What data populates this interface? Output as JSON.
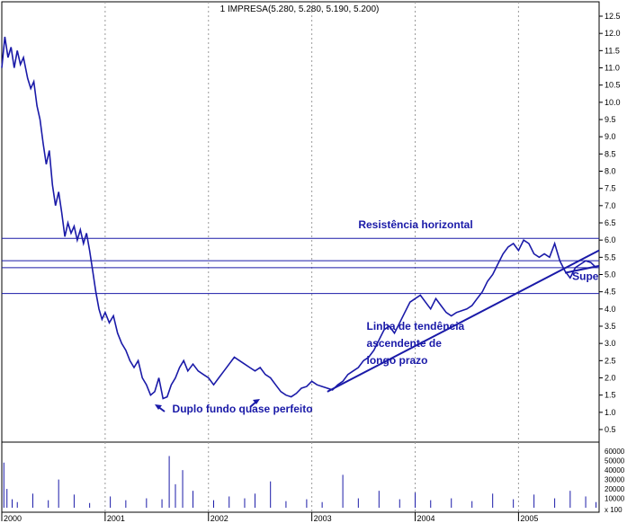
{
  "chart_data": {
    "type": "line",
    "title": "1 IMPRESA(5.280, 5.280, 5.190, 5.200)",
    "y_ticks": [
      "12.5",
      "12.0",
      "11.5",
      "11.0",
      "10.5",
      "10.0",
      "9.5",
      "9.0",
      "8.5",
      "8.0",
      "7.5",
      "7.0",
      "6.5",
      "6.0",
      "5.5",
      "5.0",
      "4.5",
      "4.0",
      "3.5",
      "3.0",
      "2.5",
      "2.0",
      "1.5",
      "1.0",
      "0.5"
    ],
    "volume_ticks": [
      "60000",
      "50000",
      "40000",
      "30000",
      "20000",
      "10000",
      "x 100"
    ],
    "x_ticks": [
      "2000",
      "2001",
      "2002",
      "2003",
      "2004",
      "2005"
    ],
    "ylim": [
      0.5,
      12.5
    ],
    "xlim": [
      2000.0,
      2005.78
    ],
    "grid": true,
    "price_series": [
      [
        2000.0,
        11.0
      ],
      [
        2000.03,
        11.9
      ],
      [
        2000.06,
        11.3
      ],
      [
        2000.09,
        11.6
      ],
      [
        2000.12,
        11.0
      ],
      [
        2000.15,
        11.5
      ],
      [
        2000.18,
        11.1
      ],
      [
        2000.21,
        11.3
      ],
      [
        2000.25,
        10.7
      ],
      [
        2000.28,
        10.4
      ],
      [
        2000.31,
        10.6
      ],
      [
        2000.34,
        9.9
      ],
      [
        2000.37,
        9.5
      ],
      [
        2000.4,
        8.8
      ],
      [
        2000.43,
        8.2
      ],
      [
        2000.46,
        8.6
      ],
      [
        2000.49,
        7.6
      ],
      [
        2000.52,
        7.0
      ],
      [
        2000.55,
        7.4
      ],
      [
        2000.58,
        6.8
      ],
      [
        2000.61,
        6.1
      ],
      [
        2000.64,
        6.5
      ],
      [
        2000.67,
        6.2
      ],
      [
        2000.7,
        6.4
      ],
      [
        2000.73,
        6.0
      ],
      [
        2000.76,
        6.3
      ],
      [
        2000.79,
        5.9
      ],
      [
        2000.82,
        6.2
      ],
      [
        2000.85,
        5.7
      ],
      [
        2000.88,
        5.1
      ],
      [
        2000.91,
        4.5
      ],
      [
        2000.94,
        4.0
      ],
      [
        2000.97,
        3.7
      ],
      [
        2001.0,
        3.9
      ],
      [
        2001.04,
        3.6
      ],
      [
        2001.08,
        3.8
      ],
      [
        2001.12,
        3.3
      ],
      [
        2001.16,
        3.0
      ],
      [
        2001.2,
        2.8
      ],
      [
        2001.24,
        2.5
      ],
      [
        2001.28,
        2.3
      ],
      [
        2001.32,
        2.5
      ],
      [
        2001.36,
        2.0
      ],
      [
        2001.4,
        1.8
      ],
      [
        2001.44,
        1.5
      ],
      [
        2001.48,
        1.6
      ],
      [
        2001.52,
        2.0
      ],
      [
        2001.56,
        1.4
      ],
      [
        2001.6,
        1.45
      ],
      [
        2001.64,
        1.8
      ],
      [
        2001.68,
        2.0
      ],
      [
        2001.72,
        2.3
      ],
      [
        2001.76,
        2.5
      ],
      [
        2001.8,
        2.2
      ],
      [
        2001.85,
        2.4
      ],
      [
        2001.9,
        2.2
      ],
      [
        2001.95,
        2.1
      ],
      [
        2002.0,
        2.0
      ],
      [
        2002.05,
        1.8
      ],
      [
        2002.1,
        2.0
      ],
      [
        2002.15,
        2.2
      ],
      [
        2002.2,
        2.4
      ],
      [
        2002.25,
        2.6
      ],
      [
        2002.3,
        2.5
      ],
      [
        2002.35,
        2.4
      ],
      [
        2002.4,
        2.3
      ],
      [
        2002.45,
        2.2
      ],
      [
        2002.5,
        2.3
      ],
      [
        2002.55,
        2.1
      ],
      [
        2002.6,
        2.0
      ],
      [
        2002.65,
        1.8
      ],
      [
        2002.7,
        1.6
      ],
      [
        2002.75,
        1.5
      ],
      [
        2002.8,
        1.45
      ],
      [
        2002.85,
        1.55
      ],
      [
        2002.9,
        1.7
      ],
      [
        2002.95,
        1.75
      ],
      [
        2003.0,
        1.9
      ],
      [
        2003.05,
        1.8
      ],
      [
        2003.1,
        1.75
      ],
      [
        2003.15,
        1.7
      ],
      [
        2003.2,
        1.65
      ],
      [
        2003.25,
        1.8
      ],
      [
        2003.3,
        1.9
      ],
      [
        2003.35,
        2.1
      ],
      [
        2003.4,
        2.2
      ],
      [
        2003.45,
        2.3
      ],
      [
        2003.5,
        2.5
      ],
      [
        2003.55,
        2.6
      ],
      [
        2003.6,
        2.8
      ],
      [
        2003.65,
        3.1
      ],
      [
        2003.7,
        3.4
      ],
      [
        2003.75,
        3.5
      ],
      [
        2003.8,
        3.3
      ],
      [
        2003.85,
        3.6
      ],
      [
        2003.9,
        3.9
      ],
      [
        2003.95,
        4.2
      ],
      [
        2004.0,
        4.3
      ],
      [
        2004.05,
        4.4
      ],
      [
        2004.1,
        4.2
      ],
      [
        2004.15,
        4.0
      ],
      [
        2004.2,
        4.3
      ],
      [
        2004.25,
        4.1
      ],
      [
        2004.3,
        3.9
      ],
      [
        2004.35,
        3.8
      ],
      [
        2004.4,
        3.9
      ],
      [
        2004.45,
        3.95
      ],
      [
        2004.5,
        4.0
      ],
      [
        2004.55,
        4.1
      ],
      [
        2004.6,
        4.3
      ],
      [
        2004.65,
        4.5
      ],
      [
        2004.7,
        4.8
      ],
      [
        2004.75,
        5.0
      ],
      [
        2004.8,
        5.3
      ],
      [
        2004.85,
        5.6
      ],
      [
        2004.9,
        5.8
      ],
      [
        2004.95,
        5.9
      ],
      [
        2005.0,
        5.7
      ],
      [
        2005.05,
        6.0
      ],
      [
        2005.1,
        5.9
      ],
      [
        2005.15,
        5.6
      ],
      [
        2005.2,
        5.5
      ],
      [
        2005.25,
        5.6
      ],
      [
        2005.3,
        5.5
      ],
      [
        2005.35,
        5.9
      ],
      [
        2005.4,
        5.4
      ],
      [
        2005.45,
        5.1
      ],
      [
        2005.5,
        4.9
      ],
      [
        2005.55,
        5.2
      ],
      [
        2005.6,
        5.3
      ],
      [
        2005.65,
        5.4
      ],
      [
        2005.7,
        5.35
      ],
      [
        2005.75,
        5.2
      ]
    ],
    "horizontal_lines": [
      6.05,
      5.4,
      5.2,
      4.45
    ],
    "trendlines": [
      {
        "from": [
          2003.15,
          1.6
        ],
        "to": [
          2005.78,
          5.7
        ]
      },
      {
        "from": [
          2005.45,
          5.05
        ],
        "to": [
          2005.78,
          5.25
        ]
      }
    ],
    "annotations": [
      {
        "text": "Resistência horizontal",
        "x": 2003.45,
        "y": 6.35
      },
      {
        "text": "Linha de tendência",
        "x": 2003.53,
        "y": 3.4
      },
      {
        "text": "ascendente de",
        "x": 2003.53,
        "y": 2.9
      },
      {
        "text": "longo prazo",
        "x": 2003.53,
        "y": 2.4
      },
      {
        "text": "Duplo fundo quase perfeito",
        "x": 2001.65,
        "y": 1.0
      },
      {
        "text": "Supe",
        "x": 2005.52,
        "y": 4.85
      }
    ],
    "volume": [
      [
        2000.02,
        48000
      ],
      [
        2000.05,
        20000
      ],
      [
        2000.1,
        9000
      ],
      [
        2000.15,
        6000
      ],
      [
        2000.3,
        15000
      ],
      [
        2000.45,
        8000
      ],
      [
        2000.55,
        30000
      ],
      [
        2000.7,
        14000
      ],
      [
        2000.85,
        5000
      ],
      [
        2001.05,
        12000
      ],
      [
        2001.2,
        8000
      ],
      [
        2001.4,
        10000
      ],
      [
        2001.55,
        9000
      ],
      [
        2001.62,
        55000
      ],
      [
        2001.68,
        25000
      ],
      [
        2001.75,
        40000
      ],
      [
        2001.85,
        18000
      ],
      [
        2002.05,
        8000
      ],
      [
        2002.2,
        12000
      ],
      [
        2002.35,
        10000
      ],
      [
        2002.45,
        15000
      ],
      [
        2002.6,
        28000
      ],
      [
        2002.75,
        7000
      ],
      [
        2002.95,
        9000
      ],
      [
        2003.1,
        6000
      ],
      [
        2003.3,
        35000
      ],
      [
        2003.45,
        10000
      ],
      [
        2003.65,
        18000
      ],
      [
        2003.85,
        9000
      ],
      [
        2004.0,
        16000
      ],
      [
        2004.15,
        8000
      ],
      [
        2004.35,
        10000
      ],
      [
        2004.55,
        7000
      ],
      [
        2004.75,
        15000
      ],
      [
        2004.95,
        9000
      ],
      [
        2005.15,
        14000
      ],
      [
        2005.35,
        10000
      ],
      [
        2005.5,
        18000
      ],
      [
        2005.65,
        12000
      ],
      [
        2005.75,
        6000
      ]
    ]
  }
}
